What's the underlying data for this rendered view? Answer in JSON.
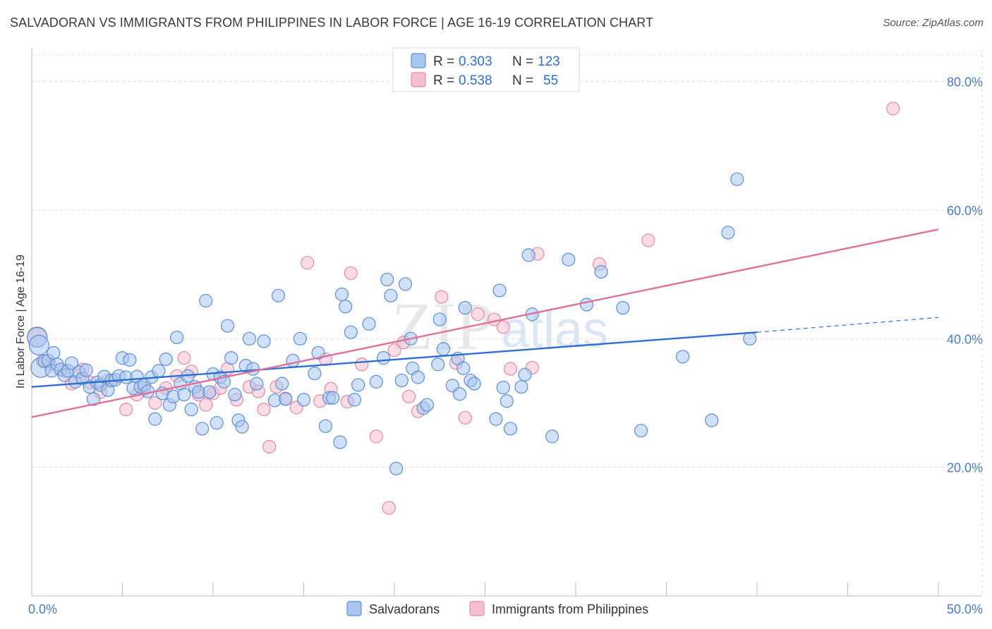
{
  "title": "SALVADORAN VS IMMIGRANTS FROM PHILIPPINES IN LABOR FORCE | AGE 16-19 CORRELATION CHART",
  "source": "Source: ZipAtlas.com",
  "watermark": {
    "zip": "ZIP",
    "atlas": "atlas"
  },
  "colors": {
    "blue_fill": "#a9c6ee",
    "blue_stroke": "#5b8fd6",
    "blue_line": "#2f6fd0",
    "pink_fill": "#f6bfd0",
    "pink_stroke": "#e38aa8",
    "pink_line": "#e0709a",
    "grid": "#dddddd",
    "axis_text": "#4a7cc9"
  },
  "legend": {
    "rows": [
      {
        "r_label": "R =",
        "r_value": "0.303",
        "n_label": "N =",
        "n_value": "123"
      },
      {
        "r_label": "R =",
        "r_value": "0.538",
        "n_label": "N =",
        "n_value": "55"
      }
    ]
  },
  "chart_data": {
    "type": "scatter",
    "xlabel": "",
    "ylabel": "In Labor Force | Age 16-19",
    "xlim": [
      0,
      50
    ],
    "ylim": [
      0,
      85
    ],
    "x_tick_labels": [
      "0.0%",
      "50.0%"
    ],
    "y_ticks": [
      20,
      40,
      60,
      80
    ],
    "y_tick_labels": [
      "20.0%",
      "40.0%",
      "60.0%",
      "80.0%"
    ],
    "grid": true,
    "legend_position": "top-center",
    "series": [
      {
        "name": "Salvadorans",
        "color": "#5b8fd6",
        "trend": {
          "x0": 0,
          "y0": 32.5,
          "x1": 40,
          "y1": 41.0,
          "dashed_to": 50,
          "dashed_y": 43.3
        },
        "points": [
          [
            0.3,
            40.2
          ],
          [
            0.4,
            39.0
          ],
          [
            0.5,
            35.5
          ],
          [
            0.7,
            36.5
          ],
          [
            0.9,
            36.6
          ],
          [
            1.1,
            35.0
          ],
          [
            1.2,
            37.8
          ],
          [
            1.4,
            36.0
          ],
          [
            1.6,
            35.2
          ],
          [
            1.8,
            34.3
          ],
          [
            2.0,
            35.0
          ],
          [
            2.2,
            36.2
          ],
          [
            2.4,
            33.3
          ],
          [
            2.6,
            34.8
          ],
          [
            2.8,
            33.8
          ],
          [
            3.0,
            35.1
          ],
          [
            3.2,
            32.5
          ],
          [
            3.4,
            30.6
          ],
          [
            3.6,
            33.2
          ],
          [
            3.8,
            32.8
          ],
          [
            4.0,
            34.1
          ],
          [
            4.2,
            32.0
          ],
          [
            4.4,
            33.5
          ],
          [
            4.6,
            33.6
          ],
          [
            4.8,
            34.2
          ],
          [
            5.0,
            37.0
          ],
          [
            5.2,
            34.0
          ],
          [
            5.4,
            36.7
          ],
          [
            5.6,
            32.3
          ],
          [
            5.8,
            34.1
          ],
          [
            6.0,
            32.5
          ],
          [
            6.2,
            32.8
          ],
          [
            6.4,
            31.8
          ],
          [
            6.6,
            34.0
          ],
          [
            6.8,
            27.5
          ],
          [
            7.0,
            35.0
          ],
          [
            7.2,
            31.5
          ],
          [
            7.4,
            36.8
          ],
          [
            7.6,
            29.7
          ],
          [
            7.8,
            31.0
          ],
          [
            8.0,
            40.2
          ],
          [
            8.2,
            33.0
          ],
          [
            8.4,
            31.3
          ],
          [
            8.6,
            34.2
          ],
          [
            8.8,
            29.0
          ],
          [
            9.0,
            32.5
          ],
          [
            9.2,
            31.7
          ],
          [
            9.4,
            26.0
          ],
          [
            9.6,
            45.9
          ],
          [
            9.8,
            31.7
          ],
          [
            10.0,
            34.5
          ],
          [
            10.2,
            26.9
          ],
          [
            10.4,
            34.0
          ],
          [
            10.6,
            33.3
          ],
          [
            10.8,
            42.0
          ],
          [
            11.0,
            37.0
          ],
          [
            11.2,
            31.3
          ],
          [
            11.4,
            27.3
          ],
          [
            11.6,
            26.3
          ],
          [
            11.8,
            35.8
          ],
          [
            12.0,
            40.0
          ],
          [
            12.2,
            35.3
          ],
          [
            12.4,
            33.0
          ],
          [
            12.8,
            39.6
          ],
          [
            13.4,
            30.4
          ],
          [
            13.6,
            46.7
          ],
          [
            13.8,
            33.0
          ],
          [
            14.0,
            30.6
          ],
          [
            14.4,
            36.6
          ],
          [
            14.8,
            40.0
          ],
          [
            15.0,
            30.5
          ],
          [
            15.6,
            34.6
          ],
          [
            15.8,
            37.8
          ],
          [
            16.2,
            26.4
          ],
          [
            16.4,
            30.8
          ],
          [
            16.6,
            30.8
          ],
          [
            17.0,
            23.9
          ],
          [
            17.1,
            46.9
          ],
          [
            17.3,
            45.0
          ],
          [
            17.6,
            41.0
          ],
          [
            17.8,
            30.5
          ],
          [
            18.0,
            32.8
          ],
          [
            18.6,
            42.3
          ],
          [
            19.0,
            33.3
          ],
          [
            19.4,
            37.0
          ],
          [
            19.6,
            49.2
          ],
          [
            19.8,
            46.7
          ],
          [
            20.1,
            19.8
          ],
          [
            20.4,
            33.5
          ],
          [
            20.6,
            48.5
          ],
          [
            20.9,
            40.0
          ],
          [
            21.0,
            35.4
          ],
          [
            21.3,
            34.0
          ],
          [
            21.6,
            29.2
          ],
          [
            21.8,
            29.7
          ],
          [
            22.4,
            36.0
          ],
          [
            22.5,
            43.0
          ],
          [
            22.7,
            38.4
          ],
          [
            23.2,
            32.7
          ],
          [
            23.5,
            36.9
          ],
          [
            23.6,
            31.4
          ],
          [
            23.8,
            35.4
          ],
          [
            23.9,
            44.8
          ],
          [
            24.2,
            33.5
          ],
          [
            24.4,
            33.0
          ],
          [
            25.6,
            27.5
          ],
          [
            25.8,
            47.5
          ],
          [
            26.0,
            32.4
          ],
          [
            26.2,
            30.3
          ],
          [
            26.4,
            26.0
          ],
          [
            27.0,
            32.5
          ],
          [
            27.2,
            34.4
          ],
          [
            27.4,
            53.0
          ],
          [
            27.6,
            43.8
          ],
          [
            28.7,
            24.8
          ],
          [
            29.6,
            52.3
          ],
          [
            30.6,
            45.3
          ],
          [
            31.4,
            50.4
          ],
          [
            32.6,
            44.8
          ],
          [
            33.6,
            25.7
          ],
          [
            35.9,
            37.2
          ],
          [
            37.5,
            27.3
          ],
          [
            38.4,
            56.5
          ],
          [
            38.9,
            64.8
          ],
          [
            39.6,
            40.0
          ]
        ]
      },
      {
        "name": "Immigrants from Philippines",
        "color": "#e38aa8",
        "trend": {
          "x0": 0,
          "y0": 27.8,
          "x1": 50,
          "y1": 57.0
        },
        "points": [
          [
            0.3,
            40.3
          ],
          [
            0.6,
            36.5
          ],
          [
            1.0,
            36.0
          ],
          [
            1.8,
            35.0
          ],
          [
            2.2,
            33.0
          ],
          [
            2.8,
            35.2
          ],
          [
            3.2,
            33.2
          ],
          [
            3.8,
            31.7
          ],
          [
            4.2,
            33.5
          ],
          [
            5.2,
            29.0
          ],
          [
            5.8,
            31.3
          ],
          [
            6.2,
            32.2
          ],
          [
            6.8,
            30.0
          ],
          [
            7.4,
            32.3
          ],
          [
            8.0,
            34.2
          ],
          [
            8.4,
            37.0
          ],
          [
            8.8,
            34.9
          ],
          [
            9.2,
            31.3
          ],
          [
            9.6,
            29.7
          ],
          [
            10.0,
            31.5
          ],
          [
            10.4,
            32.3
          ],
          [
            10.8,
            35.3
          ],
          [
            11.3,
            30.5
          ],
          [
            12.0,
            32.5
          ],
          [
            12.5,
            31.8
          ],
          [
            12.8,
            29.0
          ],
          [
            13.1,
            23.2
          ],
          [
            13.5,
            32.5
          ],
          [
            14.0,
            30.7
          ],
          [
            14.6,
            29.3
          ],
          [
            15.2,
            51.8
          ],
          [
            15.9,
            30.3
          ],
          [
            16.2,
            36.8
          ],
          [
            16.5,
            32.2
          ],
          [
            17.4,
            30.2
          ],
          [
            17.6,
            50.2
          ],
          [
            18.2,
            36.0
          ],
          [
            19.0,
            24.8
          ],
          [
            19.7,
            13.7
          ],
          [
            20.0,
            38.2
          ],
          [
            20.5,
            39.4
          ],
          [
            20.8,
            31.0
          ],
          [
            21.3,
            28.7
          ],
          [
            22.6,
            46.5
          ],
          [
            23.4,
            36.2
          ],
          [
            23.9,
            27.7
          ],
          [
            24.6,
            43.8
          ],
          [
            25.5,
            43.0
          ],
          [
            26.0,
            41.8
          ],
          [
            26.4,
            35.3
          ],
          [
            27.6,
            35.5
          ],
          [
            27.9,
            53.2
          ],
          [
            31.3,
            51.6
          ],
          [
            34.0,
            55.3
          ],
          [
            47.5,
            75.8
          ]
        ]
      }
    ]
  },
  "bottom_legend": {
    "items": [
      {
        "label": "Salvadorans"
      },
      {
        "label": "Immigrants from Philippines"
      }
    ]
  }
}
